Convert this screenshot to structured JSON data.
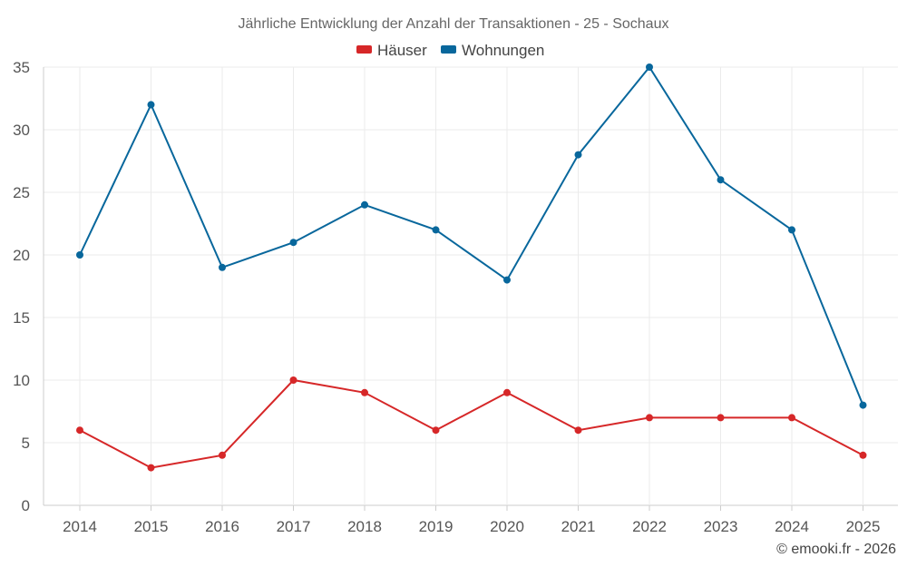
{
  "chart_data": {
    "type": "line",
    "title": "Jährliche Entwicklung der Anzahl der Transaktionen - 25 - Sochaux",
    "xlabel": "",
    "ylabel": "",
    "categories": [
      "2014",
      "2015",
      "2016",
      "2017",
      "2018",
      "2019",
      "2020",
      "2021",
      "2022",
      "2023",
      "2024",
      "2025"
    ],
    "series": [
      {
        "name": "Häuser",
        "color": "#d62728",
        "values": [
          6,
          3,
          4,
          10,
          9,
          6,
          9,
          6,
          7,
          7,
          7,
          4
        ]
      },
      {
        "name": "Wohnungen",
        "color": "#08679c",
        "values": [
          20,
          32,
          19,
          21,
          24,
          22,
          18,
          28,
          35,
          26,
          22,
          8
        ]
      }
    ],
    "ylim": [
      0,
      35
    ],
    "yticks": [
      0,
      5,
      10,
      15,
      20,
      25,
      30,
      35
    ],
    "grid": true,
    "legend": "top-center"
  },
  "footer": {
    "credit": "© emooki.fr - 2026"
  }
}
